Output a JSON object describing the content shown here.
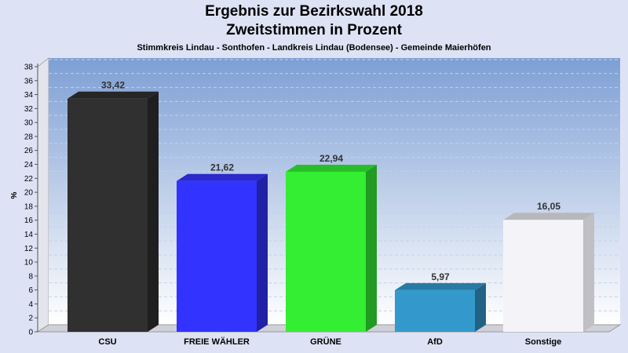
{
  "chart_data": {
    "type": "bar",
    "title": "Ergebnis zur Bezirkswahl 2018",
    "title2": "Zweitstimmen in Prozent",
    "subtitle": "Stimmkreis Lindau - Sonthofen - Landkreis Lindau (Bodensee) - Gemeinde Maierhöfen",
    "ylabel": "%",
    "ylim": [
      0,
      38
    ],
    "yticks": [
      0,
      2,
      4,
      6,
      8,
      10,
      12,
      14,
      16,
      18,
      20,
      22,
      24,
      26,
      28,
      30,
      32,
      34,
      36,
      38
    ],
    "grid": true,
    "categories": [
      "CSU",
      "FREIE WÄHLER",
      "GRÜNE",
      "AfD",
      "Sonstige"
    ],
    "values": [
      33.42,
      21.62,
      22.94,
      5.97,
      16.05
    ],
    "value_labels": [
      "33,42",
      "21,62",
      "22,94",
      "5,97",
      "16,05"
    ],
    "colors": [
      "#303030",
      "#3333ff",
      "#33ee33",
      "#3399cc",
      "#f4f4f8"
    ]
  }
}
